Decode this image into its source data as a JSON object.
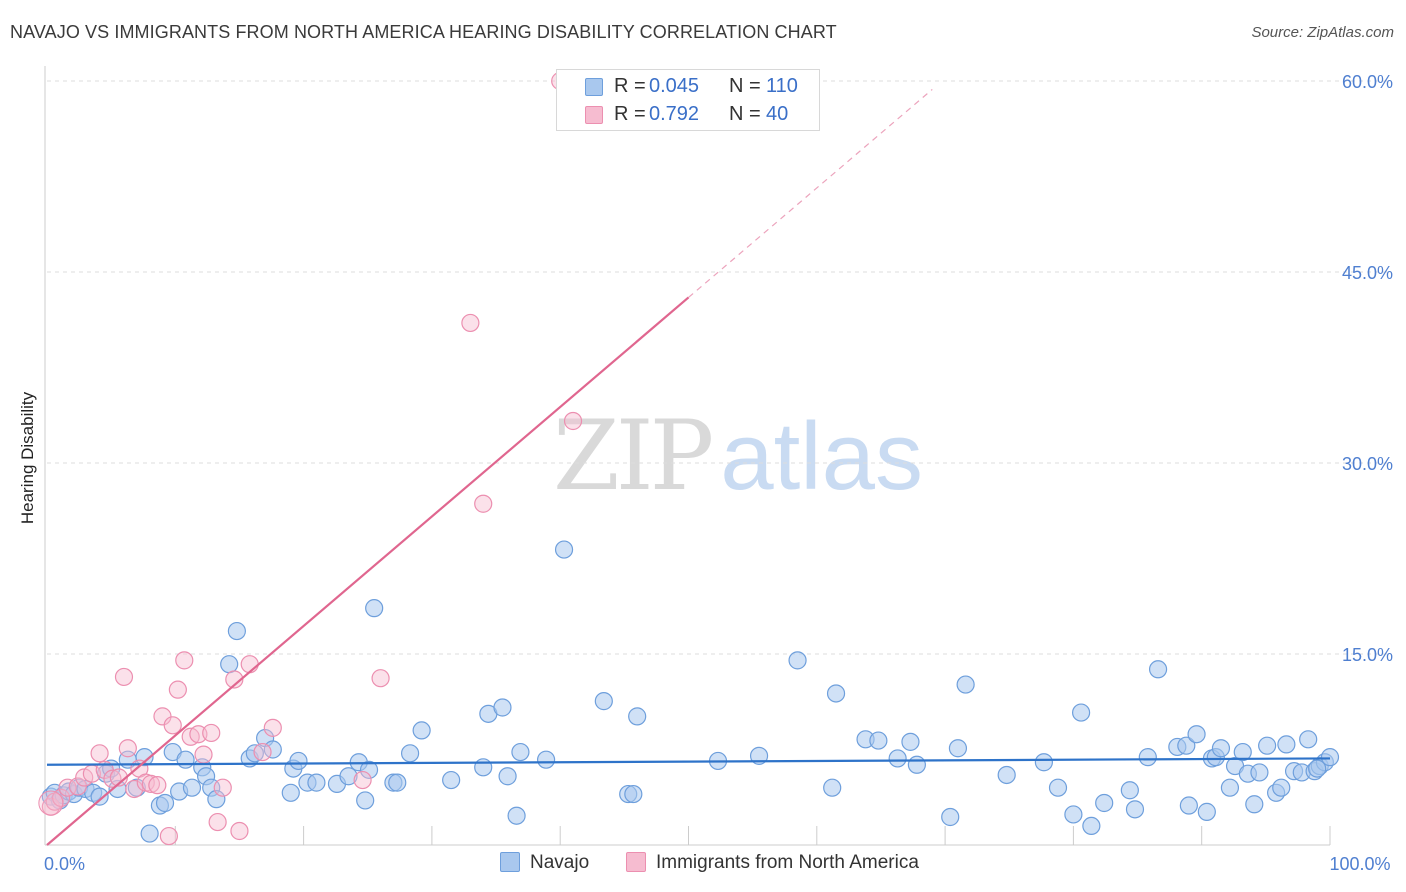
{
  "title": "NAVAJO VS IMMIGRANTS FROM NORTH AMERICA HEARING DISABILITY CORRELATION CHART",
  "source": "Source: ZipAtlas.com",
  "watermark": {
    "zip": "ZIP",
    "atlas": "atlas"
  },
  "legend_stats": [
    {
      "r_label": "R =",
      "r_value": "0.045",
      "n_label": "N =",
      "n_value": "110"
    },
    {
      "r_label": "R =",
      "r_value": "0.792",
      "n_label": "N =",
      "n_value": "40"
    }
  ],
  "colors": {
    "navajo_fill": "#a9c8ee",
    "navajo_stroke": "#6e9fdc",
    "navajo_line": "#2e73c9",
    "imm_fill": "#f6bcd0",
    "imm_stroke": "#ec8fb0",
    "imm_line": "#e0668f",
    "grid": "#dddddd",
    "tick_text": "#4f7fd0"
  },
  "chart_data": {
    "type": "scatter",
    "title": "NAVAJO VS IMMIGRANTS FROM NORTH AMERICA HEARING DISABILITY CORRELATION CHART",
    "xlabel": "",
    "ylabel": "Hearing Disability",
    "xlim": [
      0,
      100
    ],
    "ylim": [
      0,
      62
    ],
    "y_ticks": [
      {
        "value": 15,
        "label": "15.0%"
      },
      {
        "value": 30,
        "label": "30.0%"
      },
      {
        "value": 45,
        "label": "45.0%"
      },
      {
        "value": 60,
        "label": "60.0%"
      }
    ],
    "x_ticks": [
      {
        "value": 0,
        "label": "0.0%"
      },
      {
        "value": 100,
        "label": "100.0%"
      }
    ],
    "grid": "horizontal dashed",
    "legend_position": "bottom",
    "series": [
      {
        "name": "Navajo",
        "r": 0.045,
        "n": 110,
        "trend": {
          "x0": 0,
          "y0": 6.3,
          "x1": 100,
          "y1": 6.8,
          "dashed_to": 100
        },
        "points": [
          [
            0.3,
            3.8
          ],
          [
            0.6,
            4.1
          ],
          [
            1.0,
            3.5
          ],
          [
            1.3,
            3.9
          ],
          [
            1.7,
            4.2
          ],
          [
            2.1,
            4.0
          ],
          [
            2.5,
            4.5
          ],
          [
            3.0,
            4.4
          ],
          [
            3.6,
            4.1
          ],
          [
            4.1,
            3.8
          ],
          [
            4.6,
            5.6
          ],
          [
            5.0,
            6.0
          ],
          [
            5.5,
            4.4
          ],
          [
            6.3,
            6.7
          ],
          [
            7.0,
            4.5
          ],
          [
            7.6,
            6.9
          ],
          [
            8.8,
            3.1
          ],
          [
            9.2,
            3.3
          ],
          [
            9.8,
            7.3
          ],
          [
            10.3,
            4.2
          ],
          [
            10.8,
            6.7
          ],
          [
            11.3,
            4.5
          ],
          [
            12.1,
            6.1
          ],
          [
            12.4,
            5.4
          ],
          [
            12.8,
            4.5
          ],
          [
            13.2,
            3.6
          ],
          [
            14.2,
            14.2
          ],
          [
            14.8,
            16.8
          ],
          [
            15.8,
            6.8
          ],
          [
            16.2,
            7.2
          ],
          [
            17.0,
            8.4
          ],
          [
            17.6,
            7.5
          ],
          [
            19.0,
            4.1
          ],
          [
            19.2,
            6.0
          ],
          [
            19.6,
            6.6
          ],
          [
            20.3,
            4.9
          ],
          [
            21.0,
            4.9
          ],
          [
            22.6,
            4.8
          ],
          [
            23.5,
            5.4
          ],
          [
            24.3,
            6.5
          ],
          [
            24.8,
            3.5
          ],
          [
            25.1,
            5.9
          ],
          [
            25.5,
            18.6
          ],
          [
            27.0,
            4.9
          ],
          [
            27.3,
            4.9
          ],
          [
            28.3,
            7.2
          ],
          [
            29.2,
            9.0
          ],
          [
            31.5,
            5.1
          ],
          [
            34.0,
            6.1
          ],
          [
            34.4,
            10.3
          ],
          [
            35.5,
            10.8
          ],
          [
            35.9,
            5.4
          ],
          [
            36.6,
            2.3
          ],
          [
            36.9,
            7.3
          ],
          [
            38.9,
            6.7
          ],
          [
            40.3,
            23.2
          ],
          [
            43.4,
            11.3
          ],
          [
            45.3,
            4.0
          ],
          [
            45.7,
            4.0
          ],
          [
            46.0,
            10.1
          ],
          [
            52.3,
            6.6
          ],
          [
            55.5,
            7.0
          ],
          [
            58.5,
            14.5
          ],
          [
            61.2,
            4.5
          ],
          [
            61.5,
            11.9
          ],
          [
            63.8,
            8.3
          ],
          [
            64.8,
            8.2
          ],
          [
            66.3,
            6.8
          ],
          [
            67.3,
            8.1
          ],
          [
            67.8,
            6.3
          ],
          [
            70.4,
            2.2
          ],
          [
            71.0,
            7.6
          ],
          [
            71.6,
            12.6
          ],
          [
            74.8,
            5.5
          ],
          [
            77.7,
            6.5
          ],
          [
            78.8,
            4.5
          ],
          [
            80.0,
            2.4
          ],
          [
            80.6,
            10.4
          ],
          [
            81.4,
            1.5
          ],
          [
            82.4,
            3.3
          ],
          [
            84.4,
            4.3
          ],
          [
            84.8,
            2.8
          ],
          [
            85.8,
            6.9
          ],
          [
            86.6,
            13.8
          ],
          [
            88.1,
            7.7
          ],
          [
            88.8,
            7.8
          ],
          [
            89.0,
            3.1
          ],
          [
            89.6,
            8.7
          ],
          [
            90.4,
            2.6
          ],
          [
            90.8,
            6.8
          ],
          [
            91.1,
            6.9
          ],
          [
            91.5,
            7.6
          ],
          [
            92.2,
            4.5
          ],
          [
            92.6,
            6.2
          ],
          [
            93.2,
            7.3
          ],
          [
            93.6,
            5.6
          ],
          [
            94.1,
            3.2
          ],
          [
            94.5,
            5.7
          ],
          [
            95.1,
            7.8
          ],
          [
            95.8,
            4.1
          ],
          [
            96.2,
            4.5
          ],
          [
            96.6,
            7.9
          ],
          [
            97.2,
            5.8
          ],
          [
            97.8,
            5.7
          ],
          [
            98.3,
            8.3
          ],
          [
            98.8,
            5.8
          ],
          [
            99.2,
            6.2
          ],
          [
            99.6,
            6.5
          ],
          [
            100.0,
            6.9
          ],
          [
            99.0,
            6.0
          ],
          [
            8.0,
            0.9
          ]
        ]
      },
      {
        "name": "Immigrants from North America",
        "r": 0.792,
        "n": 40,
        "trend": {
          "x0": 0,
          "y0": 0,
          "x1": 50,
          "y1": 43,
          "dashed_to": 69
        },
        "points": [
          [
            0.3,
            3.0
          ],
          [
            0.6,
            3.4
          ],
          [
            1.1,
            3.7
          ],
          [
            1.6,
            4.5
          ],
          [
            2.4,
            4.6
          ],
          [
            2.9,
            5.3
          ],
          [
            3.5,
            5.6
          ],
          [
            4.1,
            7.2
          ],
          [
            4.5,
            5.9
          ],
          [
            5.1,
            5.2
          ],
          [
            5.6,
            5.3
          ],
          [
            6.0,
            13.2
          ],
          [
            6.3,
            7.6
          ],
          [
            6.8,
            4.4
          ],
          [
            7.2,
            6.0
          ],
          [
            7.7,
            4.9
          ],
          [
            8.1,
            4.8
          ],
          [
            8.6,
            4.7
          ],
          [
            9.0,
            10.1
          ],
          [
            9.5,
            0.7
          ],
          [
            9.8,
            9.4
          ],
          [
            10.2,
            12.2
          ],
          [
            10.7,
            14.5
          ],
          [
            11.2,
            8.5
          ],
          [
            11.8,
            8.7
          ],
          [
            12.2,
            7.1
          ],
          [
            12.8,
            8.8
          ],
          [
            13.3,
            1.8
          ],
          [
            13.7,
            4.5
          ],
          [
            14.6,
            13.0
          ],
          [
            15.0,
            1.1
          ],
          [
            15.8,
            14.2
          ],
          [
            16.8,
            7.3
          ],
          [
            17.6,
            9.2
          ],
          [
            24.6,
            5.1
          ],
          [
            26.0,
            13.1
          ],
          [
            33.0,
            41.0
          ],
          [
            34.0,
            26.8
          ],
          [
            41.0,
            33.3
          ],
          [
            40.0,
            60.0
          ]
        ]
      }
    ]
  }
}
